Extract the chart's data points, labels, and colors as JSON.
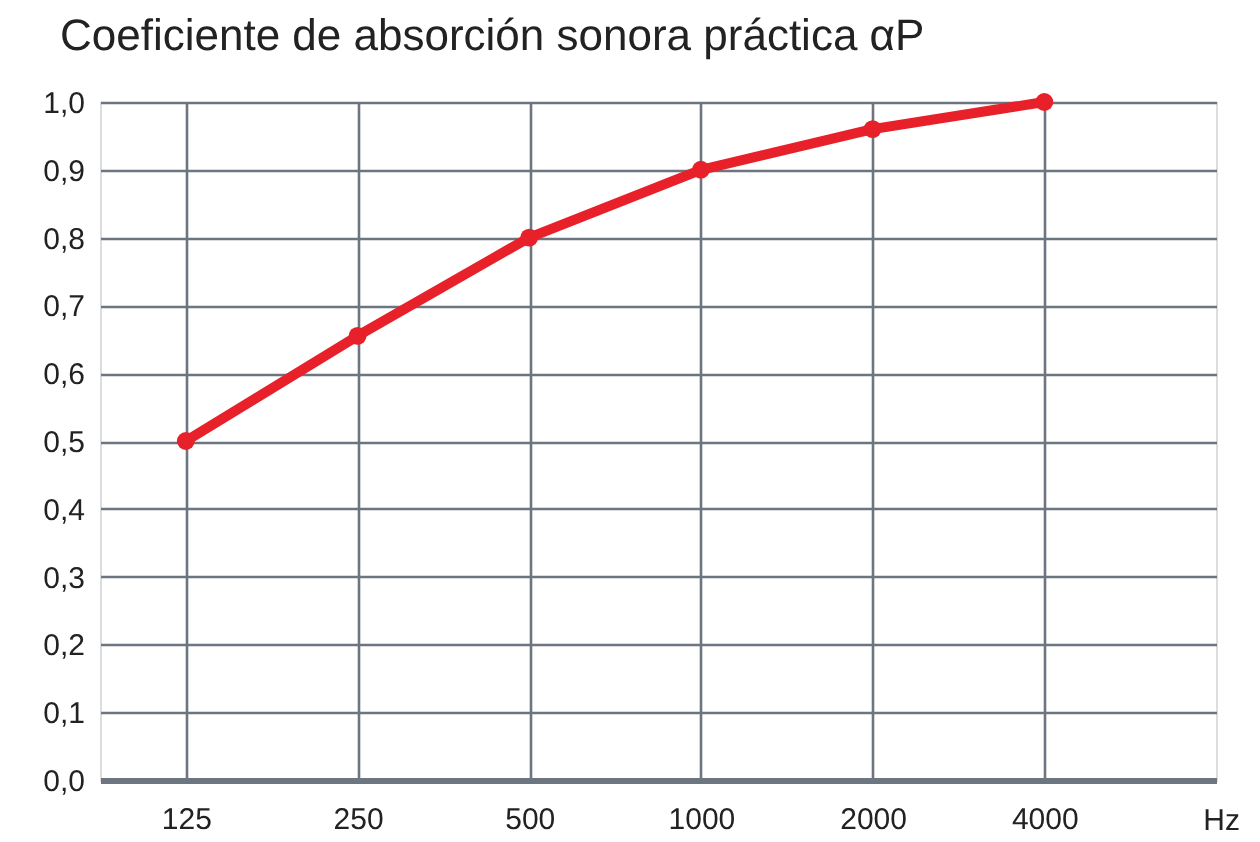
{
  "chart_data": {
    "type": "line",
    "title": "Coeficiente de absorción sonora práctica αP",
    "xlabel": "Hz",
    "categories": [
      "125",
      "250",
      "500",
      "1000",
      "2000",
      "4000"
    ],
    "series": [
      {
        "color": "#e8202a",
        "values": [
          0.5,
          0.655,
          0.8,
          0.9,
          0.96,
          1.0
        ]
      }
    ],
    "ylim": [
      0,
      1
    ],
    "yticks": [
      {
        "value": 0,
        "label": "0,0"
      },
      {
        "value": 0.1,
        "label": "0,1"
      },
      {
        "value": 0.2,
        "label": "0,2"
      },
      {
        "value": 0.3,
        "label": "0,3"
      },
      {
        "value": 0.4,
        "label": "0,4"
      },
      {
        "value": 0.5,
        "label": "0,5"
      },
      {
        "value": 0.6,
        "label": "0,6"
      },
      {
        "value": 0.7,
        "label": "0,7"
      },
      {
        "value": 0.8,
        "label": "0,8"
      },
      {
        "value": 0.9,
        "label": "0,9"
      },
      {
        "value": 1,
        "label": "1,0"
      }
    ],
    "grid": true,
    "marker": "circle",
    "line_style": "solid",
    "legend": false
  }
}
